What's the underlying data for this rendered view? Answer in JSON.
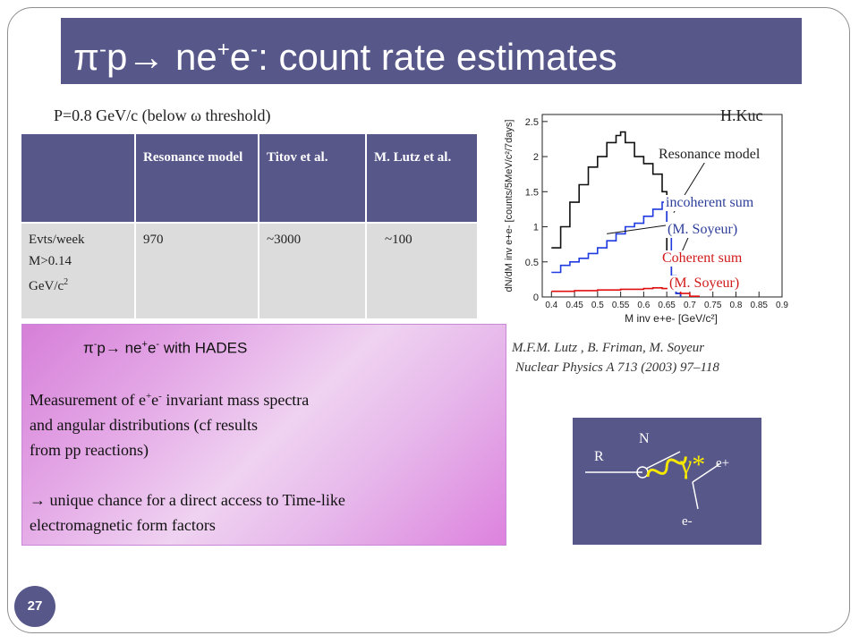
{
  "title": {
    "pre": "π",
    "sup1": "-",
    "mid": "p",
    "arrow": "→",
    "rest": " ne",
    "sup2": "+",
    "e": "e",
    "sup3": "-",
    "tail": ": count rate estimates"
  },
  "subtitle": {
    "pre": "P=0.8 GeV/c (below ",
    "omega": "ω",
    "post": " threshold)"
  },
  "table": {
    "headers": [
      "",
      "Resonance model",
      "Titov et al.",
      "M. Lutz et al."
    ],
    "row": {
      "label_line1": "Evts/week",
      "label_line2": "M>0.14",
      "label_line3": "GeV/c",
      "label_sup": "2",
      "res": "970",
      "titov": "~3000",
      "lutz": "~100"
    }
  },
  "chart": {
    "credit": "H.Kuc",
    "ylabel": "dN/dM inv e+e- [counts/5MeV/c²/7days]",
    "xlabel": "M inv e+e- [GeV/c²]",
    "yticks": [
      "0",
      "0.5",
      "1",
      "1.5",
      "2",
      "2.5"
    ],
    "xticks": [
      "0.4",
      "0.45",
      "0.5",
      "0.55",
      "0.6",
      "0.65",
      "0.7",
      "0.75",
      "0.8",
      "0.85",
      "0.9"
    ],
    "labels": {
      "resonance": "Resonance model",
      "incoherent1": "incoherent sum",
      "incoherent2": "(M. Soyeur)",
      "coherent1": "Coherent sum",
      "coherent2": "(M. Soyeur)"
    },
    "colors": {
      "resonance": "#111111",
      "incoherent": "#1f3ae0",
      "coherent": "#e01010"
    }
  },
  "chart_data": {
    "type": "line",
    "xlabel": "M inv e+e- [GeV/c²]",
    "ylabel": "dN/dM inv e+e- [counts/5MeV/c²/7days]",
    "xlim": [
      0.38,
      0.9
    ],
    "ylim": [
      0,
      2.6
    ],
    "series": [
      {
        "name": "Resonance model",
        "x": [
          0.4,
          0.42,
          0.44,
          0.46,
          0.48,
          0.5,
          0.52,
          0.54,
          0.55,
          0.56,
          0.58,
          0.6,
          0.62,
          0.64,
          0.65,
          0.66,
          0.67,
          0.68
        ],
        "y": [
          0.7,
          1.0,
          1.35,
          1.6,
          1.85,
          2.0,
          2.2,
          2.3,
          2.35,
          2.2,
          2.0,
          1.9,
          1.75,
          1.5,
          0.6,
          0.2,
          0.05,
          0.0
        ]
      },
      {
        "name": "incoherent sum",
        "x": [
          0.4,
          0.42,
          0.44,
          0.46,
          0.48,
          0.5,
          0.52,
          0.54,
          0.56,
          0.58,
          0.6,
          0.62,
          0.64,
          0.65,
          0.66,
          0.67,
          0.68
        ],
        "y": [
          0.35,
          0.45,
          0.5,
          0.55,
          0.62,
          0.7,
          0.8,
          0.9,
          1.0,
          1.05,
          1.15,
          1.25,
          1.35,
          0.9,
          0.3,
          0.05,
          0.0
        ]
      },
      {
        "name": "Coherent sum",
        "x": [
          0.4,
          0.45,
          0.5,
          0.55,
          0.6,
          0.62,
          0.64,
          0.66,
          0.68,
          0.7,
          0.72
        ],
        "y": [
          0.08,
          0.09,
          0.1,
          0.11,
          0.12,
          0.13,
          0.12,
          0.1,
          0.05,
          0.01,
          0.0
        ]
      }
    ]
  },
  "reference": {
    "line1": "M.F.M. Lutz , B. Friman, M. Soyeur",
    "line2": "Nuclear Physics A 713 (2003) 97–118"
  },
  "box": {
    "head": {
      "pre": "π",
      "sup1": "-",
      "mid": "p",
      "arrow": "→",
      "rest": " ne",
      "sup2": "+",
      "e": "e",
      "sup3": "-",
      "tail": " with HADES"
    },
    "line1_pre": "Measurement of e",
    "line1_sup1": "+",
    "line1_mid": "e",
    "line1_sup2": "-",
    "line1_post": " invariant mass spectra",
    "line2": "and angular distributions (cf  results",
    "line3": "from pp reactions)",
    "line4": "→ unique chance for a direct access to Time-like",
    "line5": " electromagnetic form factors"
  },
  "diagram": {
    "n": "N",
    "r": "R",
    "gamma": "γ*",
    "eplus": "e+",
    "eminus": "e-",
    "bg": "#57578a"
  },
  "page_number": "27"
}
